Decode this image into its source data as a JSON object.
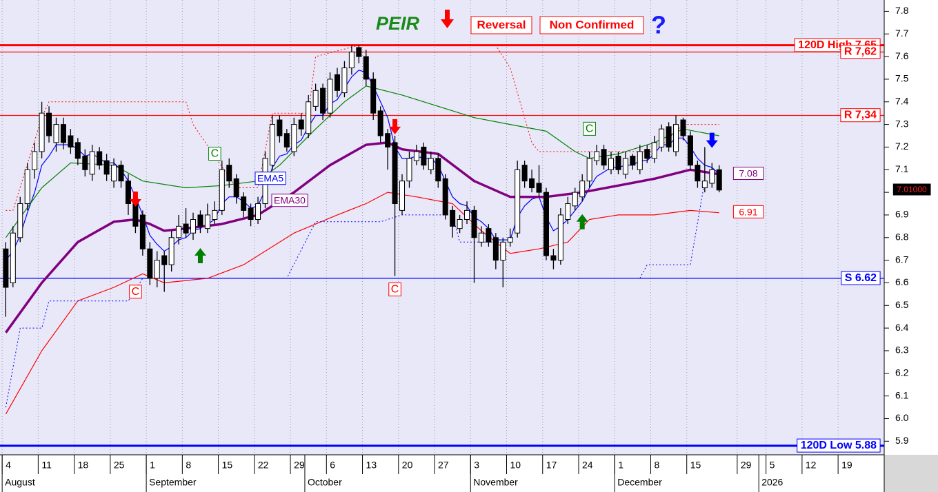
{
  "chart_data": {
    "type": "candlestick",
    "title": "PEIR",
    "annotations": [
      "Reversal",
      "Non Confirmed",
      "?"
    ],
    "open": [
      6.75,
      6.6,
      6.8,
      6.95,
      7.1,
      7.18,
      7.35,
      7.22,
      7.3,
      7.25,
      7.22,
      7.16,
      7.08,
      7.18,
      7.14,
      7.05,
      7.12,
      7.05,
      6.97,
      6.9,
      6.75,
      6.62,
      6.72,
      6.68,
      6.8,
      6.86,
      6.82,
      6.9,
      6.84,
      6.88,
      6.92,
      7.12,
      7.06,
      6.98,
      6.93,
      6.88,
      6.95,
      7.12,
      7.32,
      7.26,
      7.18,
      7.32,
      7.26,
      7.38,
      7.46,
      7.35,
      7.52,
      7.44,
      7.55,
      7.64,
      7.6,
      7.5,
      7.36,
      7.26,
      7.22,
      6.92,
      7.05,
      7.14,
      7.2,
      7.1,
      7.15,
      7.06,
      6.92,
      6.84,
      6.88,
      6.92,
      6.78,
      6.84,
      6.8,
      6.7,
      6.78,
      6.82,
      7.12,
      7.06,
      7.04,
      7.0,
      6.72,
      6.7,
      6.88,
      6.94,
      6.98,
      7.05,
      7.14,
      7.19,
      7.1,
      7.16,
      7.08,
      7.16,
      7.1,
      7.19,
      7.15,
      7.2,
      7.29,
      7.18,
      7.32,
      7.25,
      7.12,
      7.02,
      7.04,
      7.1
    ],
    "high": [
      6.78,
      6.85,
      6.98,
      7.13,
      7.22,
      7.4,
      7.38,
      7.33,
      7.33,
      7.28,
      7.24,
      7.19,
      7.21,
      7.2,
      7.17,
      7.15,
      7.14,
      7.08,
      6.99,
      6.92,
      6.78,
      6.74,
      6.74,
      6.83,
      6.9,
      6.93,
      6.91,
      6.92,
      6.95,
      6.96,
      7.14,
      7.15,
      7.08,
      7.0,
      6.95,
      6.98,
      7.18,
      7.34,
      7.34,
      7.28,
      7.33,
      7.35,
      7.43,
      7.48,
      7.48,
      7.53,
      7.55,
      7.58,
      7.65,
      7.65,
      7.63,
      7.53,
      7.38,
      7.28,
      7.25,
      7.08,
      7.18,
      7.21,
      7.22,
      7.18,
      7.17,
      7.08,
      6.94,
      6.9,
      6.96,
      6.94,
      6.85,
      6.86,
      6.82,
      6.8,
      6.84,
      7.14,
      7.14,
      7.1,
      7.12,
      7.02,
      6.75,
      6.93,
      6.98,
      7.02,
      7.08,
      7.18,
      7.21,
      7.21,
      7.18,
      7.18,
      7.18,
      7.17,
      7.21,
      7.21,
      7.25,
      7.3,
      7.31,
      7.34,
      7.33,
      7.27,
      7.14,
      7.2,
      7.13,
      7.12
    ],
    "low": [
      6.45,
      6.58,
      6.78,
      6.92,
      7.06,
      7.15,
      7.22,
      7.18,
      7.19,
      7.17,
      7.12,
      7.07,
      7.05,
      7.1,
      7.05,
      7.02,
      7.02,
      6.9,
      6.82,
      6.72,
      6.59,
      6.58,
      6.56,
      6.65,
      6.77,
      6.8,
      6.79,
      6.82,
      6.82,
      6.86,
      6.9,
      7.02,
      6.95,
      6.89,
      6.85,
      6.86,
      6.93,
      7.1,
      7.22,
      7.18,
      7.16,
      7.25,
      7.24,
      7.36,
      7.32,
      7.33,
      7.42,
      7.42,
      7.52,
      7.57,
      7.47,
      7.32,
      7.22,
      7.1,
      6.63,
      6.9,
      7.02,
      7.12,
      7.1,
      7.08,
      7.02,
      6.88,
      6.8,
      6.82,
      6.86,
      6.6,
      6.76,
      6.76,
      6.66,
      6.58,
      6.76,
      6.8,
      7.02,
      7.0,
      6.98,
      6.7,
      6.66,
      6.68,
      6.86,
      6.92,
      6.96,
      7.02,
      7.12,
      7.1,
      7.08,
      7.08,
      7.06,
      7.1,
      7.08,
      7.13,
      7.13,
      7.18,
      7.18,
      7.16,
      7.23,
      7.1,
      7.02,
      7.0,
      7.02,
      7.0
    ],
    "close": [
      6.58,
      6.82,
      6.95,
      7.1,
      7.18,
      7.35,
      7.25,
      7.3,
      7.22,
      7.2,
      7.15,
      7.1,
      7.18,
      7.12,
      7.08,
      7.12,
      7.05,
      6.95,
      6.85,
      6.75,
      6.62,
      6.7,
      6.68,
      6.8,
      6.85,
      6.82,
      6.88,
      6.85,
      6.9,
      6.92,
      7.1,
      7.05,
      6.98,
      6.92,
      6.88,
      6.95,
      7.15,
      7.3,
      7.25,
      7.2,
      7.3,
      7.28,
      7.4,
      7.45,
      7.35,
      7.5,
      7.45,
      7.55,
      7.62,
      7.6,
      7.5,
      7.35,
      7.25,
      7.2,
      6.95,
      7.05,
      7.15,
      7.18,
      7.12,
      7.15,
      7.05,
      6.9,
      6.85,
      6.88,
      6.92,
      6.8,
      6.82,
      6.78,
      6.7,
      6.78,
      6.8,
      7.1,
      7.05,
      7.02,
      7.0,
      6.72,
      6.7,
      6.9,
      6.95,
      7.0,
      7.05,
      7.15,
      7.18,
      7.12,
      7.15,
      7.1,
      7.15,
      7.12,
      7.18,
      7.15,
      7.22,
      7.28,
      7.2,
      7.3,
      7.25,
      7.12,
      7.05,
      7.05,
      7.1,
      7.01
    ],
    "series": [
      {
        "name": "EMA5",
        "color": "#0000ff",
        "line_style": "solid",
        "values": [
          6.7,
          6.74,
          6.81,
          6.91,
          7.0,
          7.12,
          7.16,
          7.21,
          7.21,
          7.21,
          7.19,
          7.16,
          7.17,
          7.15,
          7.13,
          7.13,
          7.1,
          7.05,
          6.98,
          6.9,
          6.81,
          6.77,
          6.74,
          6.76,
          6.79,
          6.8,
          6.83,
          6.84,
          6.86,
          6.88,
          6.95,
          6.98,
          6.98,
          6.96,
          6.93,
          6.94,
          7.01,
          7.11,
          7.16,
          7.17,
          7.21,
          7.23,
          7.29,
          7.34,
          7.34,
          7.39,
          7.41,
          7.46,
          7.51,
          7.54,
          7.53,
          7.47,
          7.4,
          7.33,
          7.2,
          7.15,
          7.15,
          7.16,
          7.15,
          7.15,
          7.12,
          7.05,
          6.98,
          6.95,
          6.94,
          6.89,
          6.87,
          6.84,
          6.79,
          6.79,
          6.79,
          6.89,
          6.94,
          6.97,
          6.98,
          6.89,
          6.83,
          6.85,
          6.88,
          6.92,
          6.96,
          7.02,
          7.07,
          7.09,
          7.11,
          7.11,
          7.12,
          7.12,
          7.14,
          7.14,
          7.17,
          7.21,
          7.21,
          7.24,
          7.24,
          7.2,
          7.15,
          7.12,
          7.11,
          7.08
        ]
      },
      {
        "name": "EMA30",
        "color": "#800080",
        "line_style": "thick",
        "end_label": true,
        "x": [
          0,
          5,
          10,
          15,
          18,
          20,
          22,
          25,
          30,
          35,
          40,
          45,
          50,
          53,
          55,
          60,
          65,
          70,
          75,
          80,
          85,
          90,
          95,
          99
        ],
        "values": [
          6.38,
          6.6,
          6.78,
          6.87,
          6.88,
          6.86,
          6.83,
          6.84,
          6.86,
          6.9,
          7.0,
          7.12,
          7.21,
          7.22,
          7.19,
          7.17,
          7.05,
          6.98,
          6.98,
          7.0,
          7.03,
          7.06,
          7.1,
          7.08
        ]
      },
      {
        "color": "#008000",
        "line_style": "solid",
        "x": [
          0,
          5,
          9,
          15,
          19,
          25,
          30,
          35,
          38,
          43,
          47,
          50,
          55,
          60,
          65,
          70,
          75,
          79,
          81,
          85,
          90,
          94,
          99
        ],
        "values": [
          6.8,
          7.02,
          7.13,
          7.12,
          7.05,
          7.02,
          7.03,
          7.05,
          7.12,
          7.28,
          7.4,
          7.47,
          7.43,
          7.38,
          7.33,
          7.3,
          7.27,
          7.18,
          7.15,
          7.17,
          7.22,
          7.28,
          7.25
        ]
      },
      {
        "color": "#ff0000",
        "line_style": "solid",
        "end_label": true,
        "x": [
          0,
          5,
          10,
          15,
          19,
          22,
          28,
          33,
          40,
          46,
          50,
          53,
          57,
          62,
          66,
          70,
          74,
          78,
          81,
          85,
          90,
          95,
          99
        ],
        "values": [
          6.02,
          6.3,
          6.52,
          6.58,
          6.64,
          6.6,
          6.62,
          6.68,
          6.82,
          6.9,
          6.95,
          7.0,
          6.98,
          6.95,
          6.83,
          6.73,
          6.75,
          6.78,
          6.88,
          6.9,
          6.9,
          6.92,
          6.91
        ]
      },
      {
        "color": "#ff0000",
        "line_style": "dotted",
        "x": [
          0,
          1,
          5,
          6,
          25,
          26,
          32,
          35,
          37,
          42,
          43,
          49,
          68,
          70,
          73,
          74,
          90,
          94,
          99
        ],
        "values": [
          6.92,
          6.92,
          7.33,
          7.4,
          7.4,
          7.3,
          7.02,
          7.02,
          7.35,
          7.35,
          7.6,
          7.65,
          7.65,
          7.55,
          7.22,
          7.18,
          7.18,
          7.3,
          7.3
        ]
      },
      {
        "color": "#0000ff",
        "line_style": "dotted",
        "x": [
          0,
          2,
          5,
          6,
          17,
          19,
          39,
          43,
          52,
          55,
          62,
          63,
          69,
          70,
          88,
          89,
          95,
          97
        ],
        "values": [
          6.05,
          6.4,
          6.4,
          6.52,
          6.52,
          6.62,
          6.62,
          6.87,
          6.87,
          6.9,
          6.9,
          6.78,
          6.78,
          null,
          6.62,
          6.68,
          6.68,
          7.05
        ]
      }
    ],
    "levels": [
      {
        "label": "120D High 7,65",
        "value": 7.65,
        "color": "#ff0000",
        "strong": true
      },
      {
        "label": "R 7,62",
        "value": 7.62,
        "color": "#ff0000",
        "strong": false
      },
      {
        "label": "R 7,34",
        "value": 7.34,
        "color": "#ff0000",
        "strong": false
      },
      {
        "label": "S 6.62",
        "value": 6.62,
        "color": "#0000ff",
        "strong": false
      },
      {
        "label": "120D Low 5.88",
        "value": 5.88,
        "color": "#0000ff",
        "strong": true
      }
    ],
    "last_price": {
      "value": 7.01,
      "label": "7.01000"
    },
    "markers": [
      {
        "kind": "down",
        "color": "#ff0000",
        "x": 18,
        "y": 6.97
      },
      {
        "kind": "down",
        "color": "#ff0000",
        "x": 54,
        "y": 7.29
      },
      {
        "kind": "up",
        "color": "#008000",
        "x": 27,
        "y": 6.72
      },
      {
        "kind": "up",
        "color": "#008000",
        "x": 80,
        "y": 6.87
      },
      {
        "kind": "down",
        "color": "#0000ff",
        "x": 98,
        "y": 7.23
      }
    ],
    "c_labels": [
      {
        "label": "C",
        "color": "#ff0000",
        "x": 18,
        "y": 6.56
      },
      {
        "label": "C",
        "color": "#ff0000",
        "x": 54,
        "y": 6.57
      },
      {
        "label": "C",
        "color": "#008000",
        "x": 29,
        "y": 7.17
      },
      {
        "label": "C",
        "color": "#008000",
        "x": 81,
        "y": 7.28
      }
    ],
    "xlim": [
      -0.8,
      121.9
    ],
    "ylim": [
      5.84,
      7.85
    ],
    "yticks": [
      5.9,
      {
        "value": 6,
        "label": "6.0"
      },
      6.1,
      6.2,
      6.3,
      6.4,
      6.5,
      6.6,
      6.7,
      6.8,
      6.9,
      {
        "value": 7,
        "label": "7.0"
      },
      7.1,
      7.2,
      7.3,
      7.4,
      7.5,
      7.6,
      7.7,
      7.8
    ],
    "xticks": [
      {
        "value": 0,
        "label": "4"
      },
      {
        "value": 5,
        "label": "11"
      },
      {
        "value": 10,
        "label": "18"
      },
      {
        "value": 15,
        "label": "25"
      },
      {
        "value": 20,
        "label": "1"
      },
      {
        "value": 25,
        "label": "8"
      },
      {
        "value": 30,
        "label": "15"
      },
      {
        "value": 35,
        "label": "22"
      },
      {
        "value": 40,
        "label": "29"
      },
      {
        "value": 45,
        "label": "6"
      },
      {
        "value": 50,
        "label": "13"
      },
      {
        "value": 55,
        "label": "20"
      },
      {
        "value": 60,
        "label": "27"
      },
      {
        "value": 65,
        "label": "3"
      },
      {
        "value": 70,
        "label": "10"
      },
      {
        "value": 75,
        "label": "17"
      },
      {
        "value": 80,
        "label": "24"
      },
      {
        "value": 85,
        "label": "1"
      },
      {
        "value": 90,
        "label": "8"
      },
      {
        "value": 95,
        "label": "15"
      },
      {
        "value": 102,
        "label": "29"
      },
      {
        "value": 106,
        "label": "5"
      },
      {
        "value": 111,
        "label": "12"
      },
      {
        "value": 116,
        "label": "19"
      }
    ],
    "month_ticks": [
      {
        "value": 0,
        "label": "August"
      },
      {
        "value": 20,
        "label": "September"
      },
      {
        "value": 42,
        "label": "October"
      },
      {
        "value": 65,
        "label": "November"
      },
      {
        "value": 85,
        "label": "December"
      },
      {
        "value": 105,
        "label": "2026"
      }
    ],
    "grid": "x"
  }
}
